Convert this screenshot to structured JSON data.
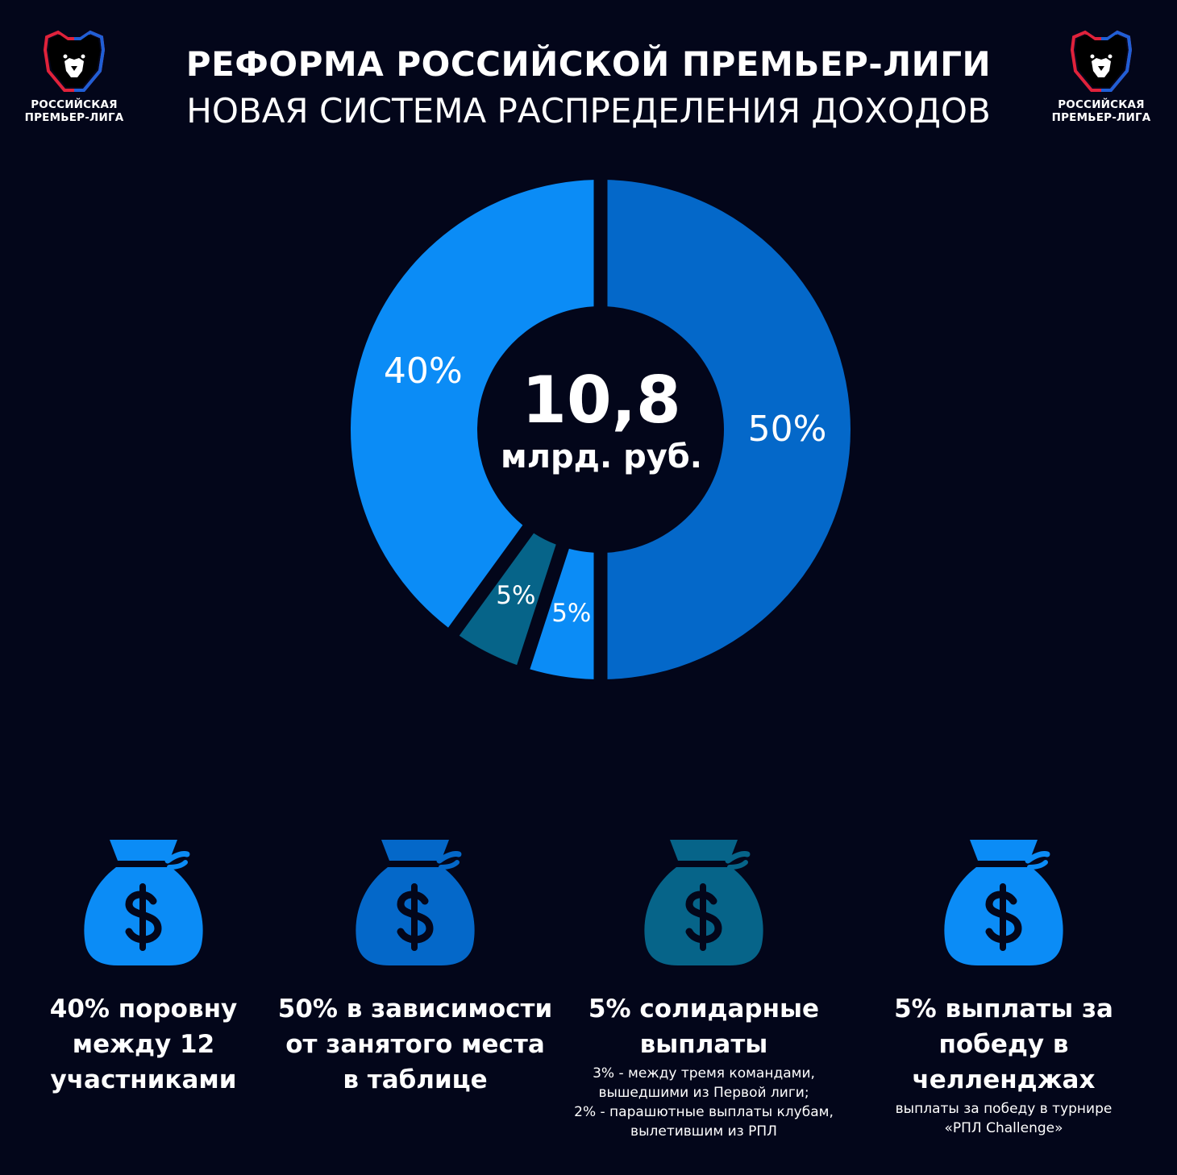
{
  "header": {
    "title": "РЕФОРМА РОССИЙСКОЙ ПРЕМЬЕР-ЛИГИ",
    "subtitle": "НОВАЯ СИСТЕМА РАСПРЕДЕЛЕНИЯ ДОХОДОВ",
    "logo_text_line1": "РОССИЙСКАЯ",
    "logo_text_line2": "ПРЕМЬЕР-ЛИГА"
  },
  "chart_data": {
    "type": "pie",
    "title": "",
    "center_value": "10,8",
    "center_unit": "млрд. руб.",
    "slices": [
      {
        "label": "50%",
        "value": 50,
        "color": "#0468c9"
      },
      {
        "label": "5%",
        "value": 5,
        "color": "#0b8cf6"
      },
      {
        "label": "5%",
        "value": 5,
        "color": "#066489"
      },
      {
        "label": "40%",
        "value": 40,
        "color": "#0b8cf6"
      }
    ]
  },
  "cards": [
    {
      "icon": "money-bag-icon",
      "color": "#0b8cf6",
      "title": "40% поровну\nмежду 12\nучастниками",
      "note": ""
    },
    {
      "icon": "money-bag-icon",
      "color": "#0468c9",
      "title": "50% в зависимости\nот занятого места\nв таблице",
      "note": ""
    },
    {
      "icon": "money-bag-icon",
      "color": "#066489",
      "title": "5% солидарные\nвыплаты",
      "note": "3% - между тремя командами,\nвышедшими из Первой лиги;\n2% - парашютные выплаты клубам,\nвылетившим из РПЛ"
    },
    {
      "icon": "money-bag-icon",
      "color": "#0b8cf6",
      "title": "5% выплаты за\nпобеду в челленджах",
      "note": "выплаты за победу в турнире\n«РПЛ Challenge»"
    }
  ],
  "colors": {
    "background": "#03061a",
    "bear_head": "#000000",
    "bear_outline_left": "#e0223b",
    "bear_outline_right": "#1f5fd6"
  }
}
